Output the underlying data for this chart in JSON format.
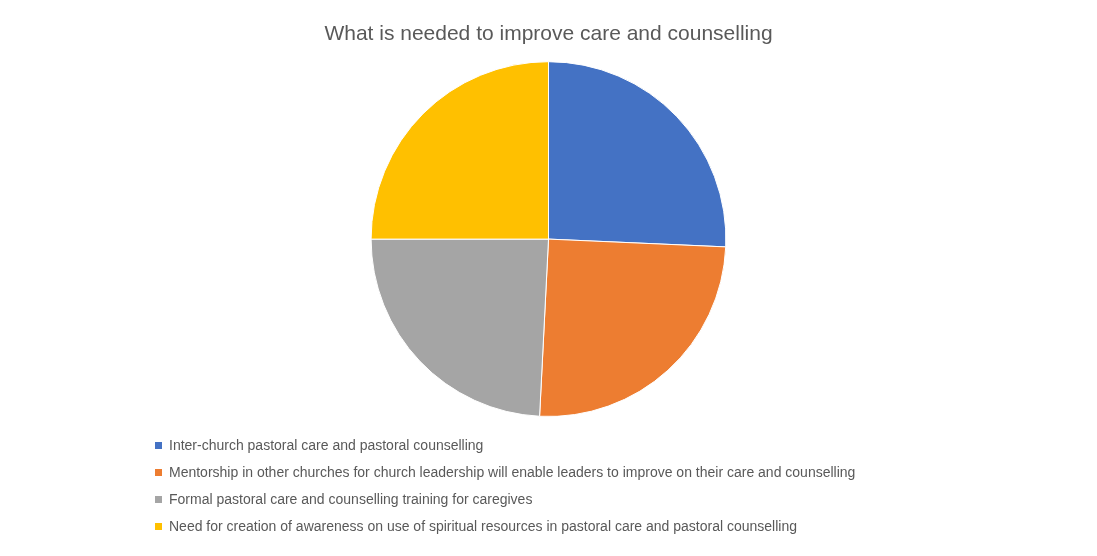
{
  "chart_data": {
    "type": "pie",
    "title": "What is needed to improve care and counselling",
    "categories": [
      "Inter-church pastoral care and pastoral counselling",
      "Mentorship in other churches for church leadership will enable leaders to improve on their care and counselling",
      "Formal pastoral care and counselling training for caregives",
      "Need for creation of awareness on use of spiritual resources in pastoral care and pastoral counselling"
    ],
    "values": [
      25.7,
      25.1,
      24.2,
      25
    ],
    "colors": [
      "#4472c4",
      "#ed7d31",
      "#a5a5a5",
      "#ffc000"
    ],
    "legend": "bottom"
  }
}
